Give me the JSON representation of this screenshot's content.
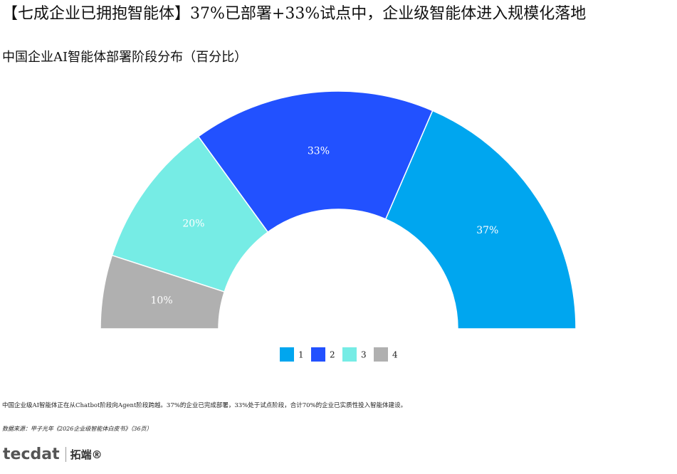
{
  "chart_data": {
    "type": "pie",
    "title": "【七成企业已拥抱智能体】37%已部署+33%试点中，企业级智能体进入规模化落地",
    "subtitle": "中国企业AI智能体部署阶段分布（百分比）",
    "categories": [
      "1",
      "2",
      "3",
      "4"
    ],
    "values": [
      37,
      33,
      20,
      10
    ],
    "value_labels": [
      "37%",
      "33%",
      "20%",
      "10%"
    ],
    "colors": [
      "#00a6ef",
      "#2251ff",
      "#76ece5",
      "#b0b0b0"
    ],
    "legend": "bottom"
  },
  "note": "中国企业级AI智能体正在从Chatbot阶段向Agent阶段跨越。37%的企业已完成部署，33%处于试点阶段，合计70%的企业已实质性投入智能体建设。",
  "source": "数据来源：甲子光年《2026企业级智能体白皮书》（36页）",
  "logo": [
    "tecdat",
    "拓端®"
  ]
}
